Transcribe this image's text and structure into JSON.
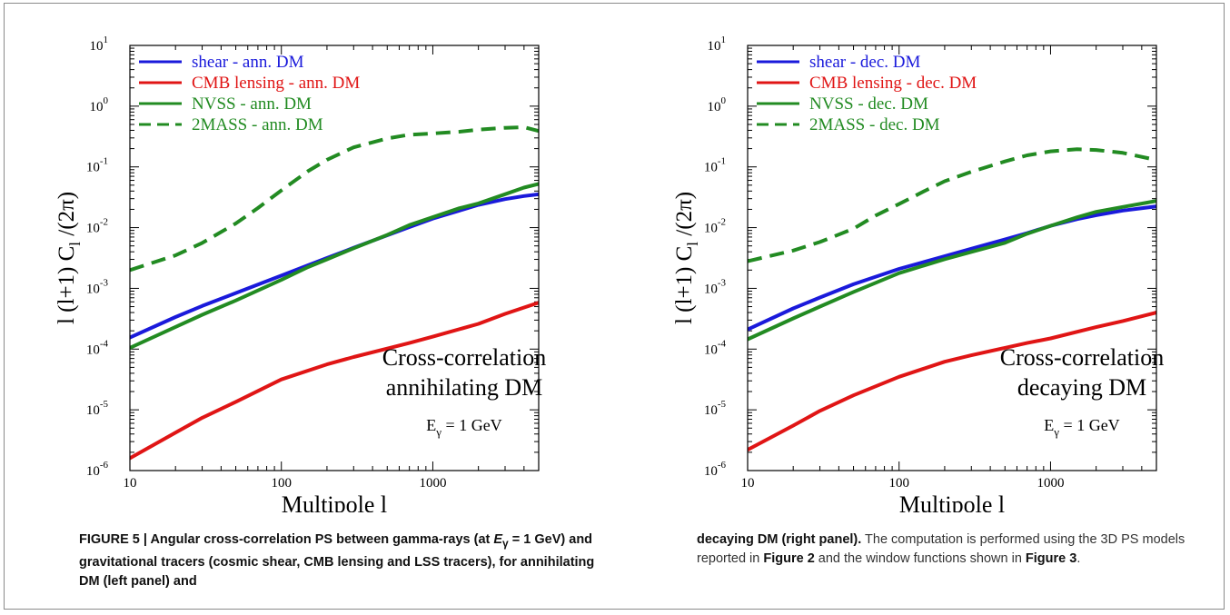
{
  "chart_data": [
    {
      "type": "line",
      "panel": "left",
      "xlabel": "Multipole l",
      "ylabel": "l (l+1) C_l /(2π)",
      "x_scale": "log",
      "y_scale": "log",
      "xlim": [
        10,
        5000
      ],
      "ylim": [
        1e-06,
        10
      ],
      "x_ticks": [
        "10",
        "100",
        "1000"
      ],
      "y_ticks": [
        "10^-6",
        "10^-5",
        "10^-4",
        "10^-3",
        "10^-2",
        "10^-1",
        "10^0",
        "10^1"
      ],
      "legend_position": "top-left",
      "annotation": [
        "Cross-correlation",
        "annihilating DM"
      ],
      "energy_label": "E_γ = 1 GeV",
      "series": [
        {
          "name": "shear - ann. DM",
          "color": "#1a1adb",
          "dash": "solid",
          "x": [
            10,
            20,
            30,
            50,
            100,
            150,
            200,
            300,
            500,
            700,
            1000,
            1500,
            2000,
            3000,
            4000,
            5000
          ],
          "y": [
            0.000155,
            0.000337,
            0.000513,
            0.000838,
            0.00162,
            0.0024,
            0.00316,
            0.00465,
            0.00747,
            0.0102,
            0.0141,
            0.0191,
            0.0237,
            0.0295,
            0.0331,
            0.0355
          ]
        },
        {
          "name": "CMB lensing - ann. DM",
          "color": "#e01515",
          "dash": "solid",
          "x": [
            10,
            20,
            30,
            50,
            100,
            200,
            300,
            500,
            700,
            1000,
            2000,
            3000,
            5000
          ],
          "y": [
            1.6e-06,
            4.2e-06,
            7.4e-06,
            1.35e-05,
            3.16e-05,
            5.6e-05,
            7.4e-05,
            0.000102,
            0.000126,
            0.00016,
            0.00026,
            0.00038,
            0.00058
          ]
        },
        {
          "name": "NVSS - ann. DM",
          "color": "#228b22",
          "dash": "solid",
          "x": [
            10,
            20,
            30,
            50,
            100,
            150,
            200,
            300,
            500,
            700,
            1000,
            1500,
            2000,
            3000,
            4000,
            5000
          ],
          "y": [
            0.000105,
            0.000232,
            0.000367,
            0.000631,
            0.00138,
            0.00224,
            0.003,
            0.00457,
            0.00759,
            0.011,
            0.0149,
            0.0209,
            0.0251,
            0.0355,
            0.0457,
            0.0525
          ]
        },
        {
          "name": "2MASS - ann. DM",
          "color": "#228b22",
          "dash": "dashed",
          "x": [
            10,
            20,
            30,
            50,
            70,
            100,
            150,
            200,
            300,
            500,
            700,
            1000,
            1500,
            2000,
            3000,
            4000,
            5000
          ],
          "y": [
            0.002,
            0.0035,
            0.0056,
            0.0117,
            0.021,
            0.041,
            0.085,
            0.131,
            0.21,
            0.294,
            0.339,
            0.355,
            0.38,
            0.41,
            0.44,
            0.45,
            0.39
          ]
        }
      ]
    },
    {
      "type": "line",
      "panel": "right",
      "xlabel": "Multipole l",
      "ylabel": "l (l+1) C_l /(2π)",
      "x_scale": "log",
      "y_scale": "log",
      "xlim": [
        10,
        5000
      ],
      "ylim": [
        1e-06,
        10
      ],
      "x_ticks": [
        "10",
        "100",
        "1000"
      ],
      "y_ticks": [
        "10^-6",
        "10^-5",
        "10^-4",
        "10^-3",
        "10^-2",
        "10^-1",
        "10^0",
        "10^1"
      ],
      "legend_position": "top-left",
      "annotation": [
        "Cross-correlation",
        "decaying DM"
      ],
      "energy_label": "E_γ = 1 GeV",
      "series": [
        {
          "name": "shear - dec. DM",
          "color": "#1a1adb",
          "dash": "solid",
          "x": [
            10,
            20,
            30,
            50,
            100,
            200,
            300,
            500,
            700,
            1000,
            1500,
            2000,
            3000,
            5000
          ],
          "y": [
            0.00021,
            0.000468,
            0.000708,
            0.00117,
            0.00209,
            0.00338,
            0.0045,
            0.0064,
            0.0081,
            0.0107,
            0.0138,
            0.016,
            0.0191,
            0.0224
          ]
        },
        {
          "name": "CMB lensing - dec. DM",
          "color": "#e01515",
          "dash": "solid",
          "x": [
            10,
            20,
            30,
            50,
            100,
            200,
            300,
            500,
            700,
            1000,
            2000,
            3000,
            5000
          ],
          "y": [
            2.2e-06,
            5.5e-06,
            9.6e-06,
            1.73e-05,
            3.5e-05,
            6.2e-05,
            7.9e-05,
            0.000105,
            0.000126,
            0.00015,
            0.00023,
            0.00029,
            0.0004
          ]
        },
        {
          "name": "NVSS - dec. DM",
          "color": "#228b22",
          "dash": "solid",
          "x": [
            10,
            20,
            30,
            50,
            100,
            200,
            300,
            500,
            700,
            1000,
            1500,
            2000,
            3000,
            5000
          ],
          "y": [
            0.000145,
            0.00032,
            0.000501,
            0.000871,
            0.00178,
            0.00302,
            0.00398,
            0.00562,
            0.00794,
            0.0107,
            0.0148,
            0.0182,
            0.0219,
            0.0275
          ]
        },
        {
          "name": "2MASS - dec. DM",
          "color": "#228b22",
          "dash": "dashed",
          "x": [
            10,
            20,
            30,
            50,
            70,
            100,
            150,
            200,
            300,
            500,
            700,
            1000,
            1500,
            2000,
            3000,
            5000
          ],
          "y": [
            0.0028,
            0.0042,
            0.0058,
            0.0096,
            0.0158,
            0.0245,
            0.041,
            0.058,
            0.083,
            0.123,
            0.155,
            0.18,
            0.195,
            0.19,
            0.17,
            0.13
          ]
        }
      ]
    }
  ],
  "caption_left": {
    "figure_label": "FIGURE 5 | ",
    "part1": "Angular cross-correlation PS between gamma-rays (at ",
    "e_gamma": "E",
    "e_sub": "γ",
    "part2": " = 1 GeV) and gravitational tracers (cosmic shear, CMB lensing and LSS tracers), for annihilating DM (left panel) and"
  },
  "caption_right": {
    "bold_start": "decaying DM (right panel).",
    "text1": " The computation is performed using the 3D PS models reported in ",
    "ref1": "Figure 2",
    "text2": " and the window functions shown in ",
    "ref2": "Figure 3",
    "text3": "."
  }
}
